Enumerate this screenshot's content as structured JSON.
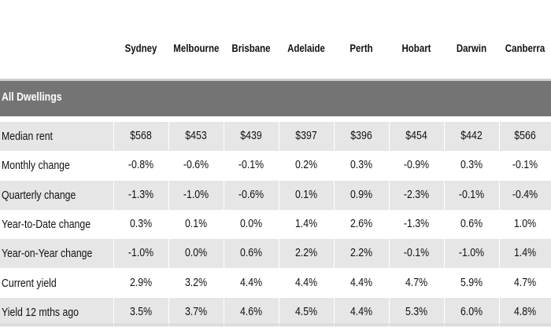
{
  "table": {
    "columns": [
      "Sydney",
      "Melbourne",
      "Brisbane",
      "Adelaide",
      "Perth",
      "Hobart",
      "Darwin",
      "Canberra"
    ],
    "section_title": "All Dwellings",
    "rows": [
      {
        "label": "Median rent",
        "values": [
          "$568",
          "$453",
          "$439",
          "$397",
          "$396",
          "$454",
          "$442",
          "$566"
        ]
      },
      {
        "label": "Monthly change",
        "values": [
          "-0.8%",
          "-0.6%",
          "-0.1%",
          "0.2%",
          "0.3%",
          "-0.9%",
          "0.3%",
          "-0.1%"
        ]
      },
      {
        "label": "Quarterly change",
        "values": [
          "-1.3%",
          "-1.0%",
          "-0.6%",
          "0.1%",
          "0.9%",
          "-2.3%",
          "-0.1%",
          "-0.4%"
        ]
      },
      {
        "label": "Year-to-Date change",
        "values": [
          "0.3%",
          "0.1%",
          "0.0%",
          "1.4%",
          "2.6%",
          "-1.3%",
          "0.6%",
          "1.0%"
        ]
      },
      {
        "label": "Year-on-Year change",
        "values": [
          "-1.0%",
          "0.0%",
          "0.6%",
          "2.2%",
          "2.2%",
          "-0.1%",
          "-1.0%",
          "1.4%"
        ]
      },
      {
        "label": "Current yield",
        "values": [
          "2.9%",
          "3.2%",
          "4.4%",
          "4.4%",
          "4.4%",
          "4.7%",
          "5.9%",
          "4.7%"
        ]
      },
      {
        "label": "Yield 12 mths ago",
        "values": [
          "3.5%",
          "3.7%",
          "4.6%",
          "4.5%",
          "4.4%",
          "5.3%",
          "6.0%",
          "4.8%"
        ]
      }
    ]
  },
  "colors": {
    "section_bar": "#747474",
    "shaded_row": "#e6e6e6",
    "text": "#111111"
  }
}
